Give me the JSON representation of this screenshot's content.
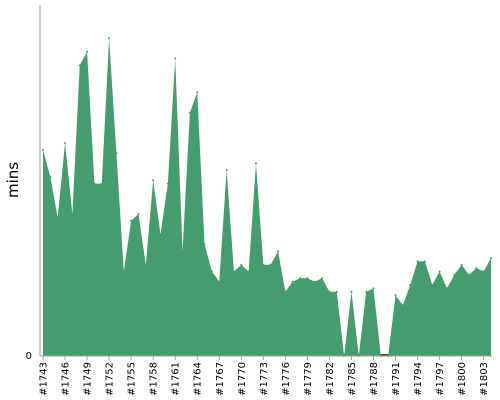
{
  "chart_data": {
    "type": "area",
    "xlabel": "",
    "ylabel": "mins",
    "y_ticks": [
      "0"
    ],
    "ylim": [
      0,
      100
    ],
    "x": [
      1743,
      1744,
      1745,
      1746,
      1747,
      1748,
      1749,
      1750,
      1751,
      1752,
      1753,
      1754,
      1755,
      1756,
      1757,
      1758,
      1759,
      1760,
      1761,
      1762,
      1763,
      1764,
      1765,
      1766,
      1767,
      1768,
      1769,
      1770,
      1771,
      1772,
      1773,
      1774,
      1775,
      1776,
      1777,
      1778,
      1779,
      1780,
      1781,
      1782,
      1783,
      1784,
      1785,
      1786,
      1787,
      1788,
      1789,
      1790,
      1791,
      1792,
      1793,
      1794,
      1795,
      1796,
      1797,
      1798,
      1799,
      1800,
      1801,
      1802,
      1803,
      1804
    ],
    "x_tick_labels": [
      "#1743",
      "#1746",
      "#1749",
      "#1752",
      "#1755",
      "#1758",
      "#1761",
      "#1764",
      "#1767",
      "#1770",
      "#1773",
      "#1776",
      "#1779",
      "#1782",
      "#1785",
      "#1788",
      "#1791",
      "#1794",
      "#1797",
      "#1800",
      "#1803"
    ],
    "values": [
      61,
      53,
      41,
      63,
      42,
      86,
      90,
      51,
      51,
      94,
      60,
      25,
      40,
      42,
      27,
      52,
      36,
      51,
      88,
      31,
      72,
      78,
      33,
      25,
      22,
      55,
      25,
      27,
      25,
      57,
      27,
      27,
      31,
      19,
      22,
      23,
      23,
      22,
      23,
      19,
      19,
      0,
      19,
      0,
      19,
      20,
      0,
      0,
      18,
      15,
      21,
      28,
      28,
      21,
      25,
      20,
      24,
      27,
      24,
      26,
      25,
      29
    ],
    "colors": {
      "fill": "#459c6e",
      "baseline_band": "#5a3a4a",
      "axis": "#a0a0a0"
    },
    "grid": false,
    "legend": "none"
  }
}
